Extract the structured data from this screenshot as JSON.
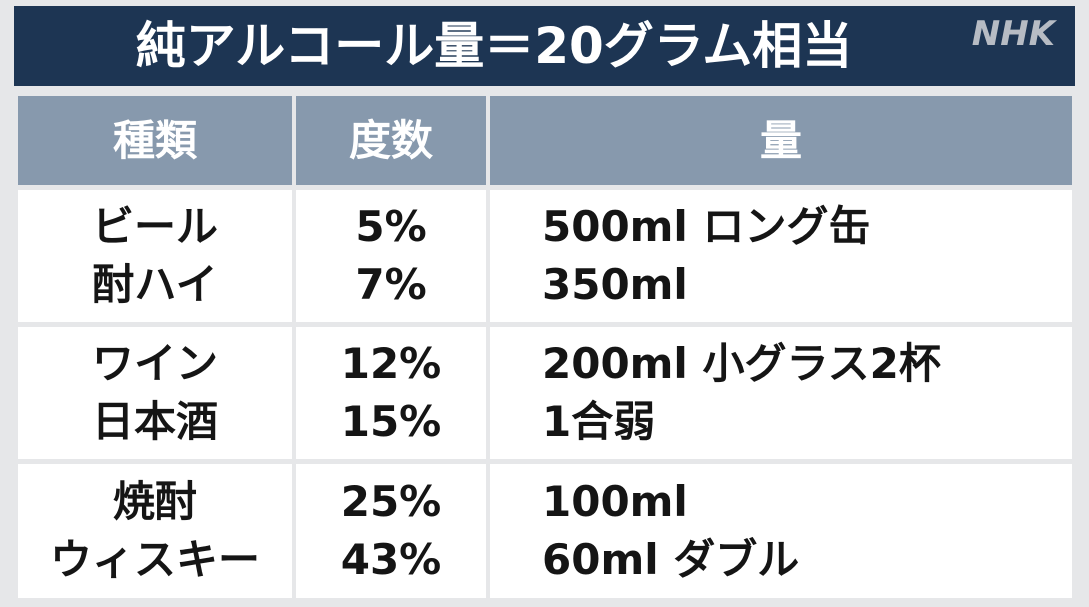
{
  "header": {
    "title": "純アルコール量＝20グラム相当",
    "watermark": "NHK"
  },
  "table": {
    "columns": [
      "種類",
      "度数",
      "量"
    ],
    "rows": [
      [
        [
          "ビール",
          "酎ハイ"
        ],
        [
          "5%",
          "7%"
        ],
        [
          "500ml ロング缶",
          "350ml"
        ]
      ],
      [
        [
          "ワイン",
          "日本酒"
        ],
        [
          "12%",
          "15%"
        ],
        [
          "200ml 小グラス2杯",
          "1合弱"
        ]
      ],
      [
        [
          "焼酎",
          "ウィスキー"
        ],
        [
          "25%",
          "43%"
        ],
        [
          "100ml",
          "60ml ダブル"
        ]
      ]
    ]
  }
}
